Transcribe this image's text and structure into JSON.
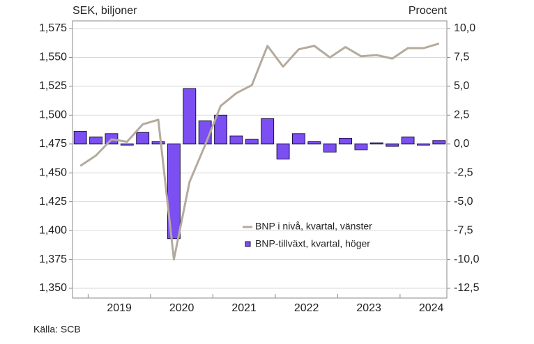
{
  "chart_data": {
    "type": "combo",
    "y_label": "SEK, biljoner",
    "y2_label": "Procent",
    "source": "Källa: SCB",
    "categories": [
      null,
      "2019",
      null,
      null,
      null,
      "2020",
      null,
      null,
      null,
      "2021",
      null,
      null,
      null,
      "2022",
      null,
      null,
      null,
      "2023",
      null,
      null,
      null,
      "2024",
      null,
      null
    ],
    "series": [
      {
        "name": "BNP i nivå, kvartal, vänster",
        "type": "line",
        "color": "#b5aa9e",
        "values": [
          1456,
          1465,
          1479,
          1477,
          1492,
          1496,
          1375,
          1442,
          1474,
          1508,
          1519,
          1526,
          1560,
          1542,
          1557,
          1560,
          1550,
          1559,
          1551,
          1552,
          1549,
          1558,
          1558,
          1562
        ]
      },
      {
        "name": "BNP-tillväxt, kvartal, höger",
        "type": "bar",
        "axis": "y2",
        "color": "#7b4ff2",
        "values": [
          1.1,
          0.6,
          0.9,
          -0.1,
          1.0,
          0.2,
          -8.2,
          4.8,
          2.0,
          2.5,
          0.7,
          0.4,
          2.2,
          -1.3,
          0.9,
          0.2,
          -0.7,
          0.5,
          -0.5,
          0.1,
          -0.2,
          0.6,
          -0.1,
          0.3
        ]
      }
    ],
    "ylim": [
      1350,
      1575
    ],
    "yticks": [
      {
        "value": 1350,
        "label": "1,350"
      },
      {
        "value": 1375,
        "label": "1,375"
      },
      {
        "value": 1400,
        "label": "1,400"
      },
      {
        "value": 1425,
        "label": "1,425"
      },
      {
        "value": 1450,
        "label": "1,450"
      },
      {
        "value": 1475,
        "label": "1,475"
      },
      {
        "value": 1500,
        "label": "1,500"
      },
      {
        "value": 1525,
        "label": "1,525"
      },
      {
        "value": 1550,
        "label": "1,550"
      },
      {
        "value": 1575,
        "label": "1,575"
      }
    ],
    "y2lim": [
      -12.5,
      10
    ],
    "y2ticks": [
      {
        "value": -12.5,
        "label": "-12,5"
      },
      {
        "value": -10,
        "label": "-10,0"
      },
      {
        "value": -7.5,
        "label": "-7,5"
      },
      {
        "value": -5,
        "label": "-5,0"
      },
      {
        "value": -2.5,
        "label": "-2,5"
      },
      {
        "value": 0,
        "label": "0,0"
      },
      {
        "value": 2.5,
        "label": "2,5"
      },
      {
        "value": 5,
        "label": "5,0"
      },
      {
        "value": 7.5,
        "label": "7,5"
      },
      {
        "value": 10,
        "label": "10,0"
      }
    ],
    "grid": true
  }
}
